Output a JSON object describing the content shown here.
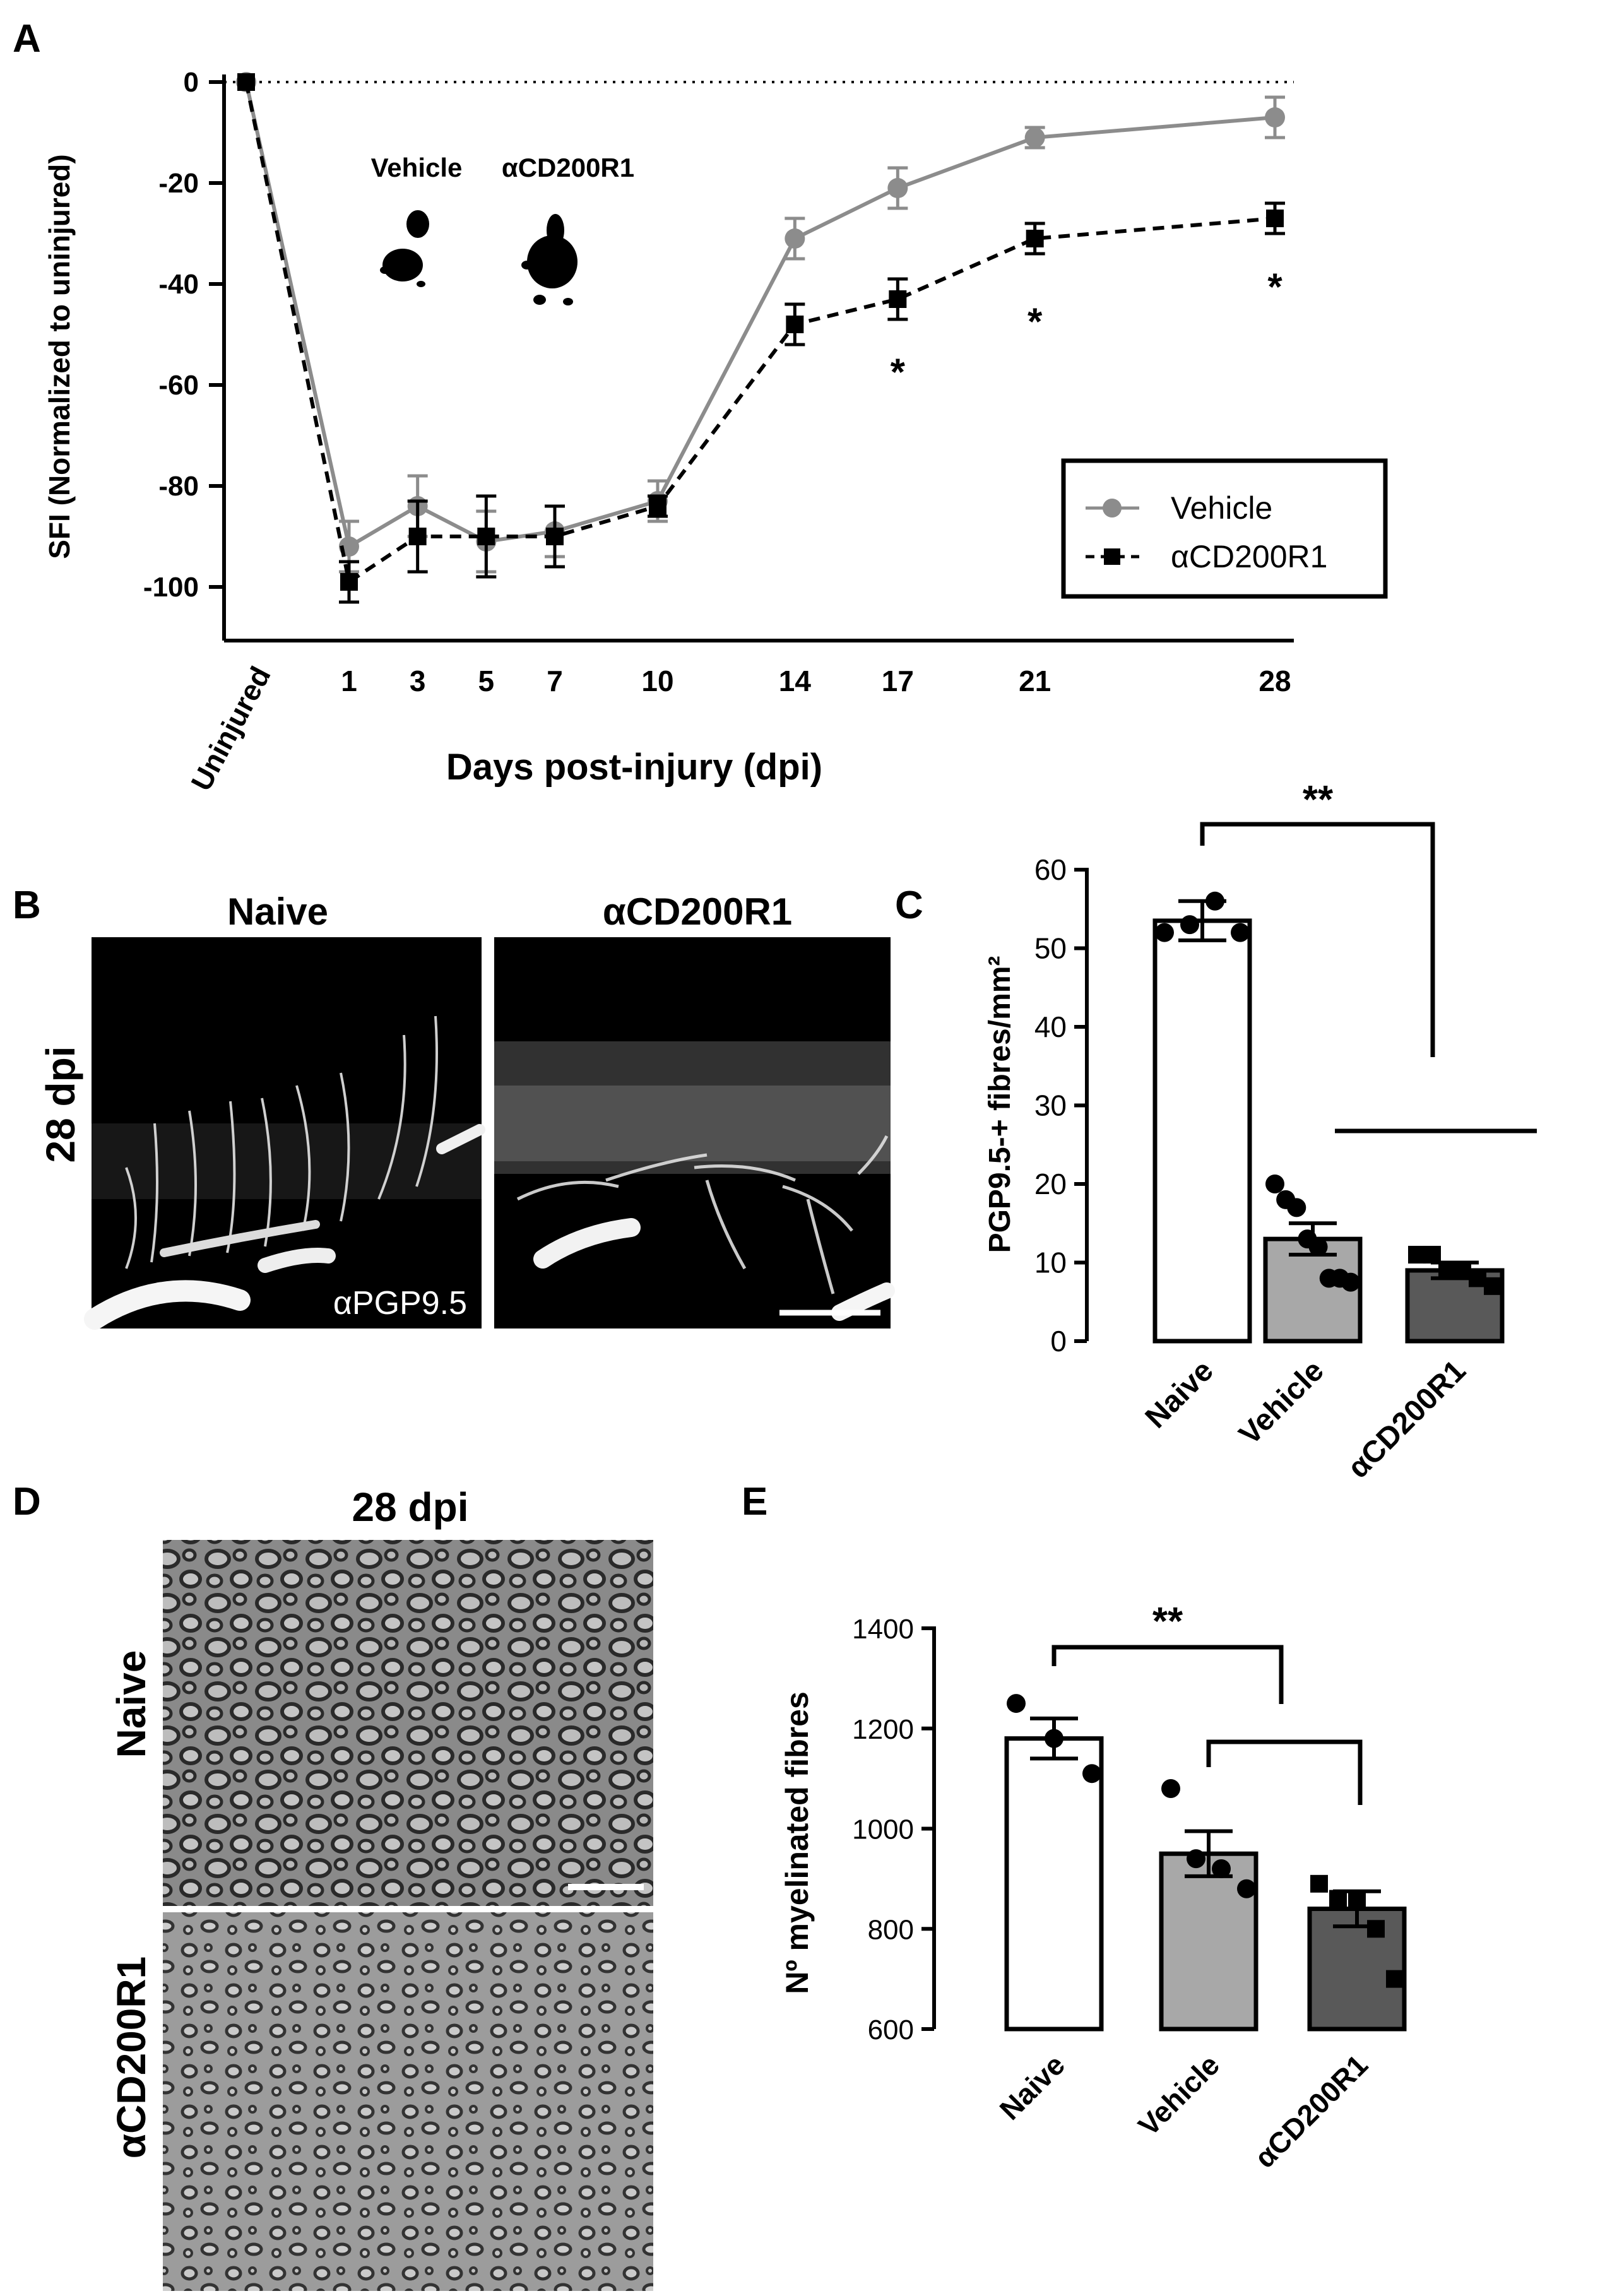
{
  "panel_labels": [
    "A",
    "B",
    "C",
    "D",
    "E"
  ],
  "chart_data": [
    {
      "panel": "A",
      "type": "line",
      "xlabel": "Days post-injury (dpi)",
      "ylabel": "SFI (Normalized to uninjured)",
      "categories": [
        "Uninjured",
        "1",
        "3",
        "5",
        "7",
        "10",
        "14",
        "17",
        "21",
        "28"
      ],
      "x_positions": [
        -2,
        1,
        3,
        5,
        7,
        10,
        14,
        17,
        21,
        28
      ],
      "ylim": [
        -110,
        0
      ],
      "yticks": [
        "0",
        "-20",
        "-40",
        "-60",
        "-80",
        "-100"
      ],
      "reference_line_y": 0,
      "series": [
        {
          "name": "Vehicle",
          "color": "#8c8c8c",
          "marker": "circle",
          "line": "solid",
          "values": [
            0,
            -92,
            -84,
            -91,
            -89,
            -83,
            -31,
            -21,
            -11,
            -7
          ],
          "errors": [
            0,
            5,
            6,
            6,
            5,
            4,
            4,
            4,
            2,
            4
          ]
        },
        {
          "name": "αCD200R1",
          "color": "#000000",
          "marker": "square",
          "line": "dashed",
          "values": [
            0,
            -99,
            -90,
            -90,
            -90,
            -84,
            -48,
            -43,
            -31,
            -27
          ],
          "errors": [
            0,
            4,
            7,
            8,
            6,
            2,
            4,
            4,
            3,
            3
          ]
        }
      ],
      "significance": [
        {
          "x": "17",
          "text": "*"
        },
        {
          "x": "21",
          "text": "*"
        },
        {
          "x": "28",
          "text": "*"
        }
      ],
      "legend_position": "bottom-right",
      "inset_labels": [
        "Vehicle",
        "αCD200R1"
      ]
    },
    {
      "panel": "C",
      "type": "bar",
      "ylabel": "PGP9.5-+ fibres/mm²",
      "categories": [
        "Naive",
        "Vehicle",
        "αCD200R1"
      ],
      "values": [
        53.5,
        13,
        9
      ],
      "errors": [
        2.5,
        2,
        1
      ],
      "fills": [
        "#ffffff",
        "#a8a8a8",
        "#595959"
      ],
      "ylim": [
        0,
        60
      ],
      "yticks": [
        "0",
        "10",
        "20",
        "30",
        "40",
        "50",
        "60"
      ],
      "points": [
        [
          52,
          53,
          56,
          52
        ],
        [
          20,
          18,
          17,
          13,
          12,
          8,
          8,
          7.5
        ],
        [
          11,
          11,
          9,
          9,
          8,
          7
        ]
      ],
      "significance": "**"
    },
    {
      "panel": "E",
      "type": "bar",
      "ylabel": "Nº myelinated fibres",
      "categories": [
        "Naive",
        "Vehicle",
        "αCD200R1"
      ],
      "values": [
        1180,
        950,
        840
      ],
      "errors": [
        40,
        45,
        35
      ],
      "fills": [
        "#ffffff",
        "#a8a8a8",
        "#595959"
      ],
      "ylim": [
        600,
        1400
      ],
      "yticks": [
        "600",
        "800",
        "1000",
        "1200",
        "1400"
      ],
      "points": [
        [
          1250,
          1180,
          1110
        ],
        [
          1080,
          940,
          920,
          880
        ],
        [
          890,
          860,
          860,
          800,
          700
        ]
      ],
      "significance": "**"
    }
  ],
  "panel_b": {
    "row_label": "28 dpi",
    "columns": [
      "Naive",
      "αCD200R1"
    ],
    "stain_label": "αPGP9.5"
  },
  "panel_d": {
    "title": "28 dpi",
    "rows": [
      "Naive",
      "αCD200R1"
    ]
  }
}
